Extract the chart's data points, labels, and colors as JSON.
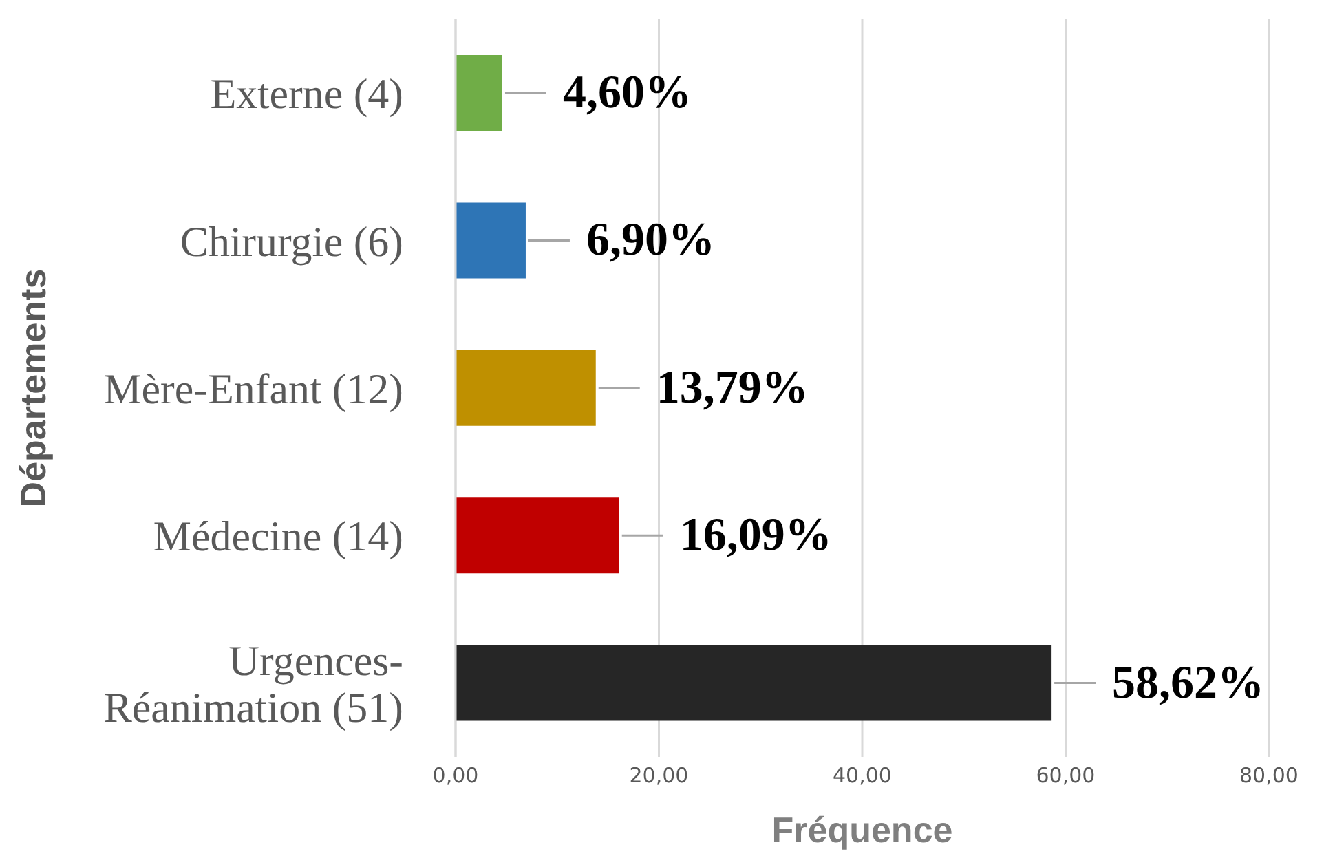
{
  "chart_data": {
    "type": "bar",
    "orientation": "horizontal",
    "xlabel": "Fréquence",
    "ylabel": "Départements",
    "categories": [
      "Externe (4)",
      "Chirurgie (6)",
      "Mère-Enfant (12)",
      "Médecine (14)",
      "Urgences-Réanimation (51)"
    ],
    "values": [
      4.6,
      6.9,
      13.79,
      16.09,
      58.62
    ],
    "colors": [
      "#70ad47",
      "#2e75b6",
      "#bf9000",
      "#c00000",
      "#262626"
    ],
    "value_labels": [
      "4,60%",
      "6,90%",
      "13,79%",
      "16,09%",
      "58,62%"
    ],
    "xlim": [
      0,
      80
    ],
    "xticks": [
      {
        "value": 0,
        "label": "0,00"
      },
      {
        "value": 20,
        "label": "20,00"
      },
      {
        "value": 40,
        "label": "40,00"
      },
      {
        "value": 60,
        "label": "60,00"
      },
      {
        "value": 80,
        "label": "80,00"
      }
    ],
    "grid": "x"
  }
}
